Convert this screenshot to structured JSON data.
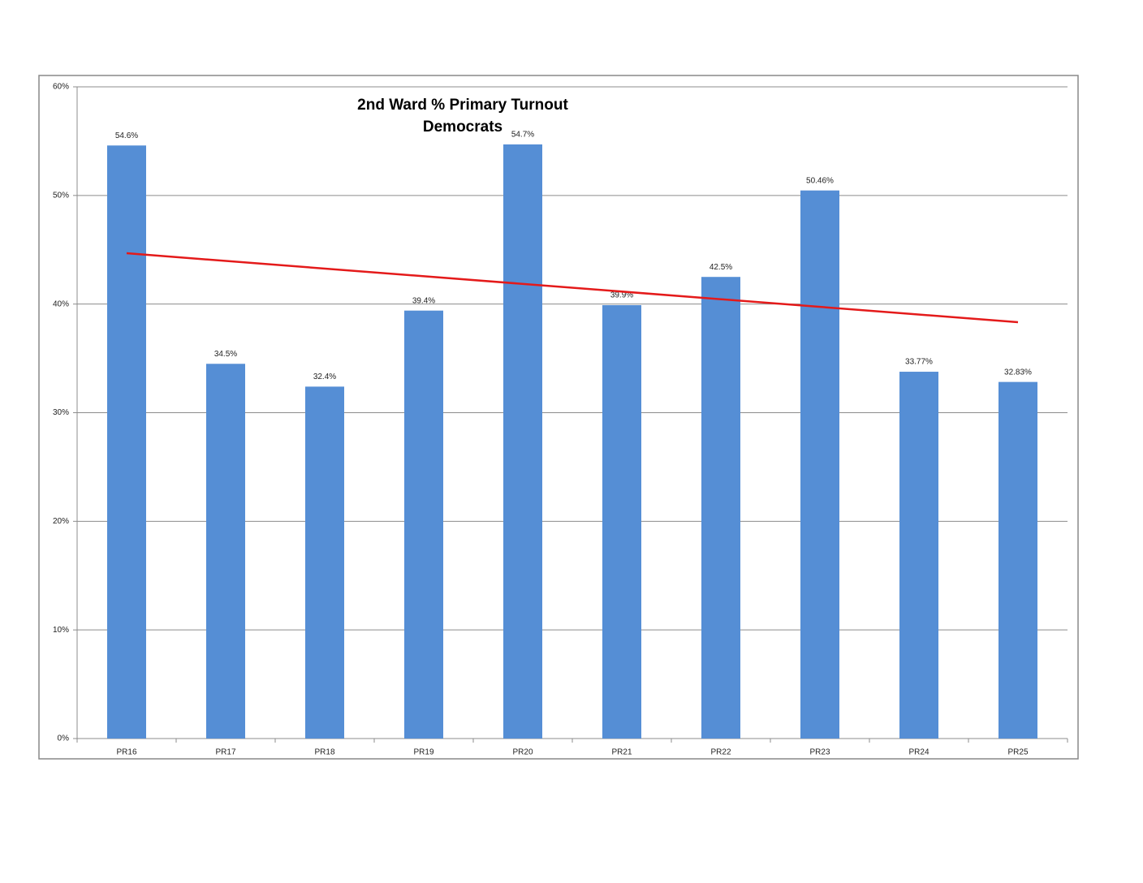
{
  "chart_data": {
    "type": "bar",
    "title": "2nd Ward % Primary Turnout",
    "subtitle": "Democrats",
    "categories": [
      "PR16",
      "PR17",
      "PR18",
      "PR19",
      "PR20",
      "PR21",
      "PR22",
      "PR23",
      "PR24",
      "PR25"
    ],
    "values": [
      54.6,
      34.5,
      32.4,
      39.4,
      54.7,
      39.9,
      42.5,
      50.46,
      33.77,
      32.83
    ],
    "value_labels": [
      "54.6%",
      "34.5%",
      "32.4%",
      "39.4%",
      "54.7%",
      "39.9%",
      "42.5%",
      "50.46%",
      "33.77%",
      "32.83%"
    ],
    "color": "#558ed5",
    "trendline": {
      "color": "#e41a1a",
      "values": [
        44.68,
        38.33
      ]
    },
    "ylim": [
      0,
      60
    ],
    "yticks": [
      {
        "value": 0,
        "label": "0%"
      },
      {
        "value": 10,
        "label": "10%"
      },
      {
        "value": 20,
        "label": "20%"
      },
      {
        "value": 30,
        "label": "30%"
      },
      {
        "value": 40,
        "label": "40%"
      },
      {
        "value": 50,
        "label": "50%"
      },
      {
        "value": 60,
        "label": "60%"
      }
    ],
    "grid": true
  }
}
